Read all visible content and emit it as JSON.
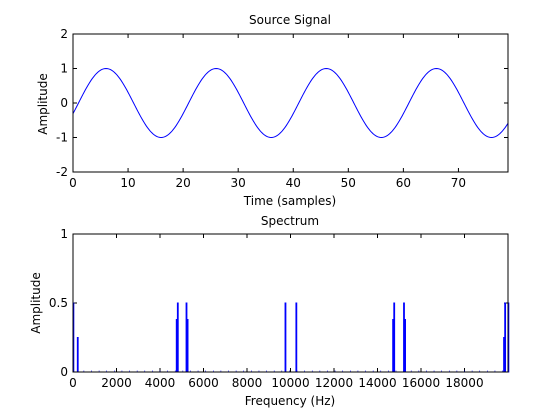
{
  "chart_data": [
    {
      "type": "line",
      "title": "Source Signal",
      "xlabel": "Time (samples)",
      "ylabel": "Amplitude",
      "xlim": [
        0,
        79
      ],
      "ylim": [
        -2,
        2
      ],
      "xticks": [
        0,
        10,
        20,
        30,
        40,
        50,
        60,
        70
      ],
      "yticks": [
        -2,
        -1,
        0,
        1,
        2
      ],
      "grid": false,
      "signal": {
        "shape": "sine",
        "amplitude": 1,
        "period_samples": 20,
        "phase_offset_samples": 1,
        "samples": 80
      },
      "color": "#0000ff"
    },
    {
      "type": "line",
      "title": "Spectrum",
      "xlabel": "Frequency (Hz)",
      "ylabel": "Amplitude",
      "xlim": [
        0,
        20000
      ],
      "ylim": [
        0,
        1
      ],
      "xticks": [
        0,
        2000,
        4000,
        6000,
        8000,
        10000,
        12000,
        14000,
        16000,
        18000
      ],
      "yticks": [
        0,
        0.5,
        1
      ],
      "ytick_labels": [
        "0",
        "0.5",
        "1"
      ],
      "grid": false,
      "color": "#0000ff",
      "peaks": [
        {
          "x": 0,
          "y": 0.5
        },
        {
          "x": 200,
          "y": 0.25
        },
        {
          "x": 4750,
          "y": 0.38
        },
        {
          "x": 4800,
          "y": 0.5
        },
        {
          "x": 5200,
          "y": 0.5
        },
        {
          "x": 5250,
          "y": 0.38
        },
        {
          "x": 9750,
          "y": 0.5
        },
        {
          "x": 10250,
          "y": 0.5
        },
        {
          "x": 14700,
          "y": 0.38
        },
        {
          "x": 14750,
          "y": 0.5
        },
        {
          "x": 15200,
          "y": 0.5
        },
        {
          "x": 15250,
          "y": 0.38
        },
        {
          "x": 19800,
          "y": 0.25
        },
        {
          "x": 19850,
          "y": 0.5
        },
        {
          "x": 20000,
          "y": 0.5
        }
      ],
      "noise_floor": 0.003
    }
  ]
}
